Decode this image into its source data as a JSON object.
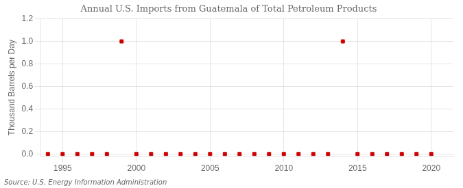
{
  "chart_data": {
    "type": "scatter",
    "title": "Annual U.S. Imports from Guatemala of Total Petroleum Products",
    "ylabel": "Thousand Barrels per Day",
    "annotations": [
      "Source: U.S. Energy Information Administration"
    ],
    "x": [
      1994,
      1995,
      1996,
      1997,
      1998,
      1999,
      2000,
      2001,
      2002,
      2003,
      2004,
      2005,
      2006,
      2007,
      2008,
      2009,
      2010,
      2011,
      2012,
      2013,
      2014,
      2015,
      2016,
      2017,
      2018,
      2019,
      2020
    ],
    "values": [
      0,
      0,
      0,
      0,
      0,
      1.0,
      0,
      0,
      0,
      0,
      0,
      0,
      0,
      0,
      0,
      0,
      0,
      0,
      0,
      0,
      1.0,
      0,
      0,
      0,
      0,
      0,
      0
    ],
    "color": "#cc0000",
    "marker": "square",
    "xlim": [
      1993.5,
      2021.5
    ],
    "ylim": [
      -0.02,
      1.2
    ],
    "xticks": [
      1995,
      2000,
      2005,
      2010,
      2015,
      2020
    ],
    "yticks": [
      {
        "value": 0.0,
        "label": "0.0"
      },
      0.2,
      0.4,
      0.6,
      0.8,
      {
        "value": 1.0,
        "label": "1.0"
      },
      1.2
    ],
    "grid": true
  }
}
